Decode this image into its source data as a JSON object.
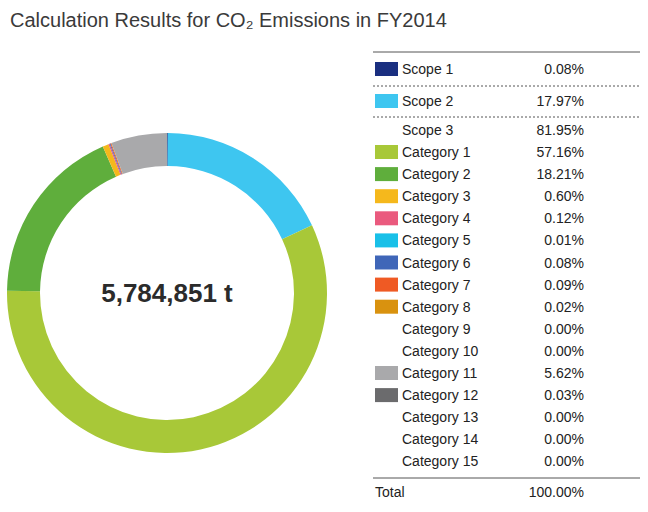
{
  "chart_data": {
    "type": "pie",
    "title": "Calculation Results for CO₂ Emissions in FY2014",
    "center_text": "5,784,851 t",
    "categories": [
      "Scope 1",
      "Scope 2",
      "Category 1",
      "Category 2",
      "Category 3",
      "Category 4",
      "Category 5",
      "Category 6",
      "Category 7",
      "Category 8",
      "Category 9",
      "Category 10",
      "Category 11",
      "Category 12",
      "Category 13",
      "Category 14",
      "Category 15"
    ],
    "values": [
      0.08,
      17.97,
      57.16,
      18.21,
      0.6,
      0.12,
      0.01,
      0.08,
      0.09,
      0.02,
      0.0,
      0.0,
      5.62,
      0.03,
      0.0,
      0.0,
      0.0
    ],
    "value_labels": [
      "0.08%",
      "17.97%",
      "57.16%",
      "18.21%",
      "0.60%",
      "0.12%",
      "0.01%",
      "0.08%",
      "0.09%",
      "0.02%",
      "0.00%",
      "0.00%",
      "5.62%",
      "0.03%",
      "0.00%",
      "0.00%",
      "0.00%"
    ],
    "colors": [
      "#1a2f80",
      "#3ec6f0",
      "#a8c838",
      "#5fae3c",
      "#f5b81c",
      "#ea5a7e",
      "#19c0e8",
      "#3f66b8",
      "#ef5a24",
      "#d9920f",
      null,
      null,
      "#a9a9ab",
      "#6b6b6d",
      null,
      null,
      null
    ],
    "subtotal": {
      "label": "Scope 3",
      "value": 81.95,
      "value_label": "81.95%"
    },
    "total": {
      "label": "Total",
      "value": 100.0,
      "value_label": "100.00%"
    },
    "legend": "right",
    "data_labels": false
  }
}
